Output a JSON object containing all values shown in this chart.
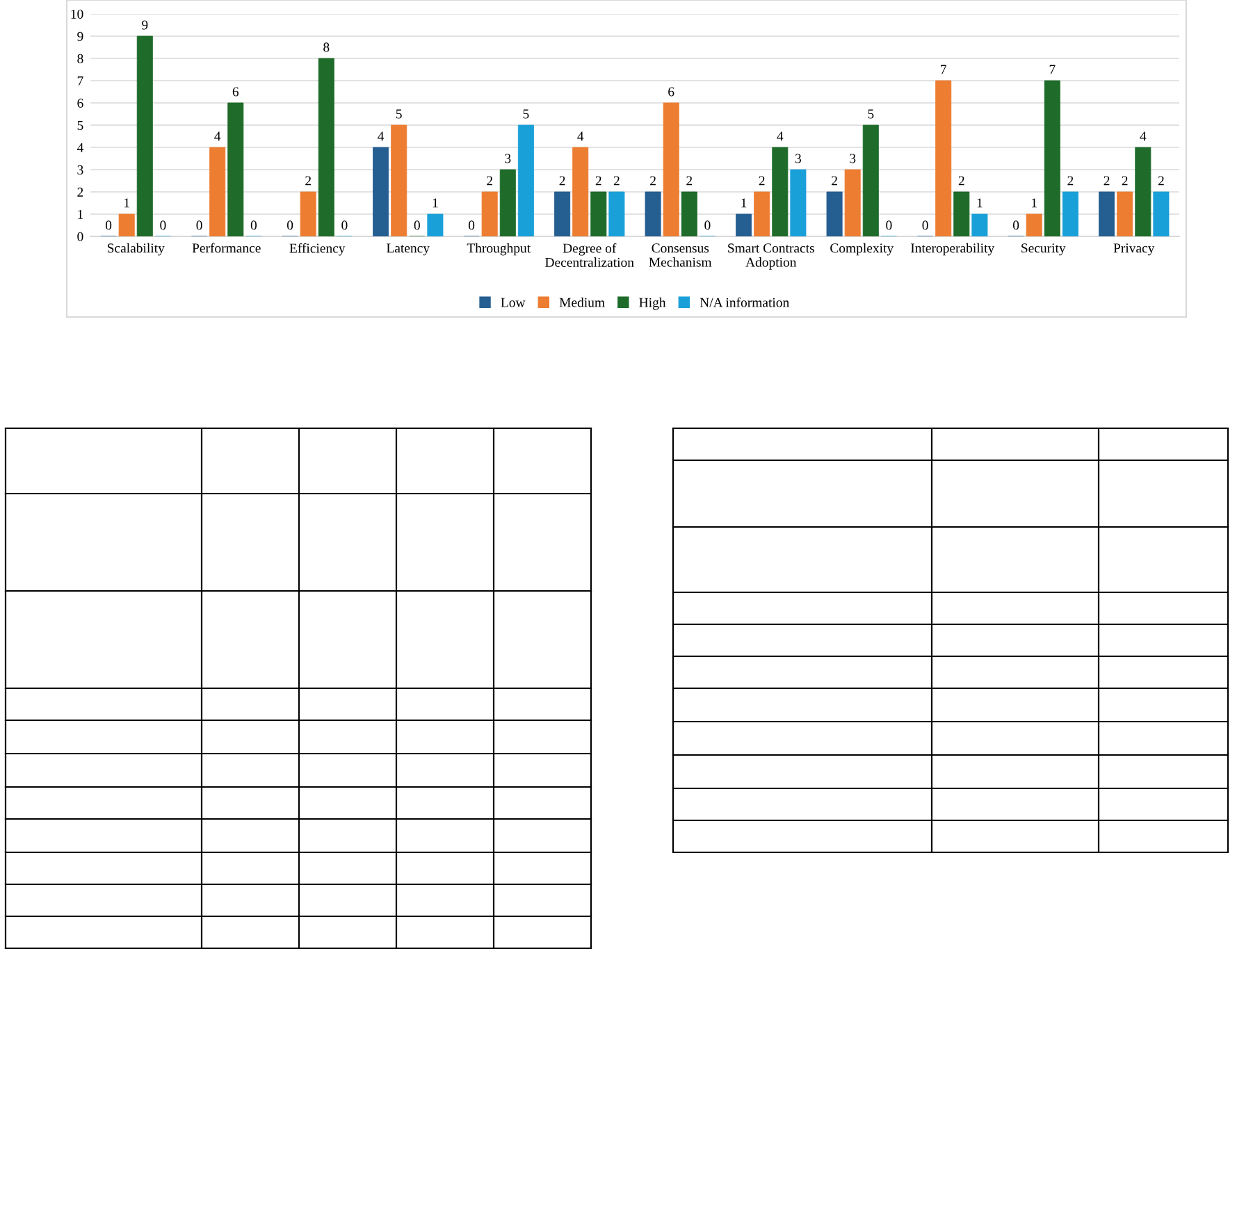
{
  "chart_data": {
    "type": "bar",
    "categories": [
      "Scalability",
      "Performance",
      "Efficiency",
      "Latency",
      "Throughput",
      "Degree of\nDecentralization",
      "Consensus\nMechanism",
      "Smart Contracts\nAdoption",
      "Complexity",
      "Interoperability",
      "Security",
      "Privacy"
    ],
    "series": [
      {
        "name": "Low",
        "color": "#255e91",
        "values": [
          0,
          0,
          0,
          4,
          0,
          2,
          2,
          1,
          2,
          0,
          0,
          2
        ]
      },
      {
        "name": "Medium",
        "color": "#ed7d31",
        "values": [
          1,
          4,
          2,
          5,
          2,
          4,
          6,
          2,
          3,
          7,
          1,
          2
        ]
      },
      {
        "name": "High",
        "color": "#1e6b2a",
        "values": [
          9,
          6,
          8,
          0,
          3,
          2,
          2,
          4,
          5,
          2,
          7,
          4
        ]
      },
      {
        "name": "N/A information",
        "color": "#1aa0d8",
        "values": [
          0,
          0,
          0,
          1,
          5,
          2,
          0,
          3,
          0,
          1,
          2,
          2
        ]
      }
    ],
    "ylim": [
      0,
      10
    ],
    "yticks": [
      0,
      1,
      2,
      3,
      4,
      5,
      6,
      7,
      8,
      9,
      10
    ],
    "grid": "y",
    "legend": "bottom",
    "data_labels": true
  }
}
